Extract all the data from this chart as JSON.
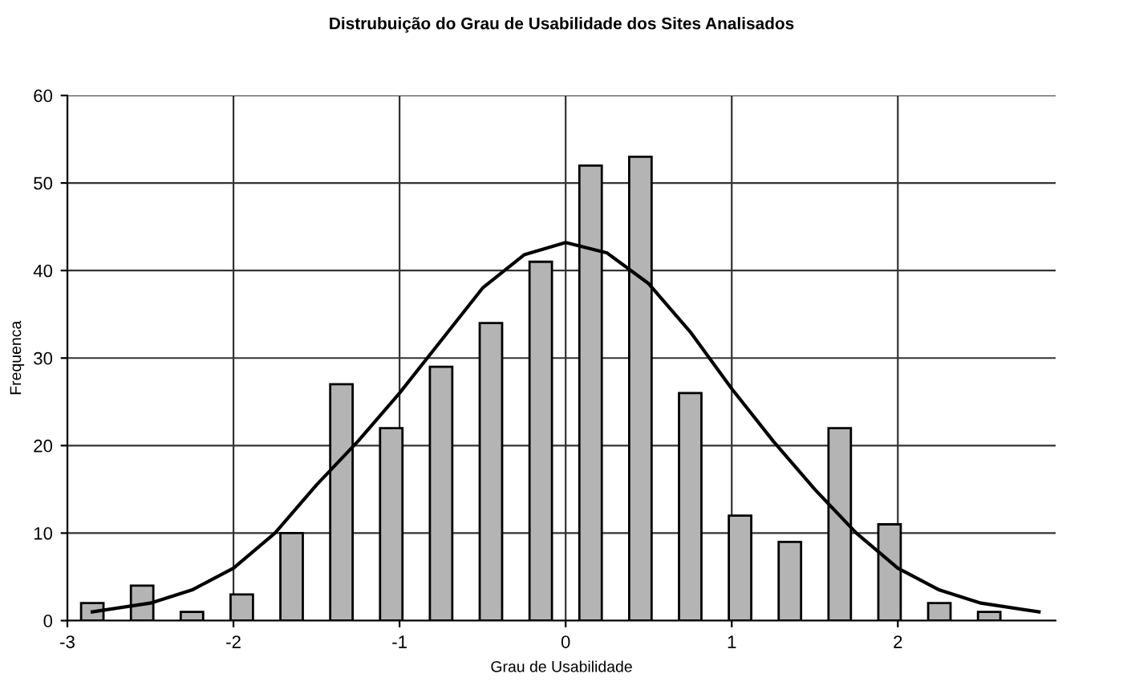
{
  "chart_data": {
    "type": "bar",
    "title": "Distrubuição do Grau de Usabilidade dos Sites Analisados",
    "xlabel": "Grau de Usabilidade",
    "ylabel": "Frequenca",
    "x": [
      -2.85,
      -2.55,
      -2.25,
      -1.95,
      -1.65,
      -1.35,
      -1.05,
      -0.75,
      -0.45,
      -0.15,
      0.15,
      0.45,
      0.75,
      1.05,
      1.35,
      1.65,
      1.95,
      2.25,
      2.55
    ],
    "series": [
      {
        "color": "#b4b4b4",
        "values": [
          2,
          4,
          1,
          3,
          10,
          27,
          22,
          29,
          34,
          41,
          52,
          53,
          26,
          12,
          9,
          22,
          11,
          2,
          1
        ]
      },
      {
        "type": "line",
        "color": "#000000",
        "x": [
          -2.85,
          -2.5,
          -2.25,
          -2,
          -1.75,
          -1.5,
          -1.25,
          -1,
          -0.75,
          -0.5,
          -0.25,
          0,
          0.25,
          0.5,
          0.75,
          1,
          1.25,
          1.5,
          1.75,
          2,
          2.25,
          2.5,
          2.85
        ],
        "values": [
          1,
          2,
          3.5,
          6,
          10,
          15.5,
          20.5,
          26,
          32,
          38,
          41.8,
          43.2,
          42,
          38.5,
          33,
          26.5,
          20.5,
          15,
          10,
          6,
          3.5,
          2,
          1
        ]
      }
    ],
    "xlim": [
      -3,
      2.95
    ],
    "ylim": [
      0,
      60
    ],
    "xticks": [
      -3,
      -2,
      -1,
      0,
      1,
      2
    ],
    "yticks": [
      0,
      10,
      20,
      30,
      40,
      50,
      60
    ],
    "grid": true,
    "line_style": "solid",
    "marker": "none"
  }
}
